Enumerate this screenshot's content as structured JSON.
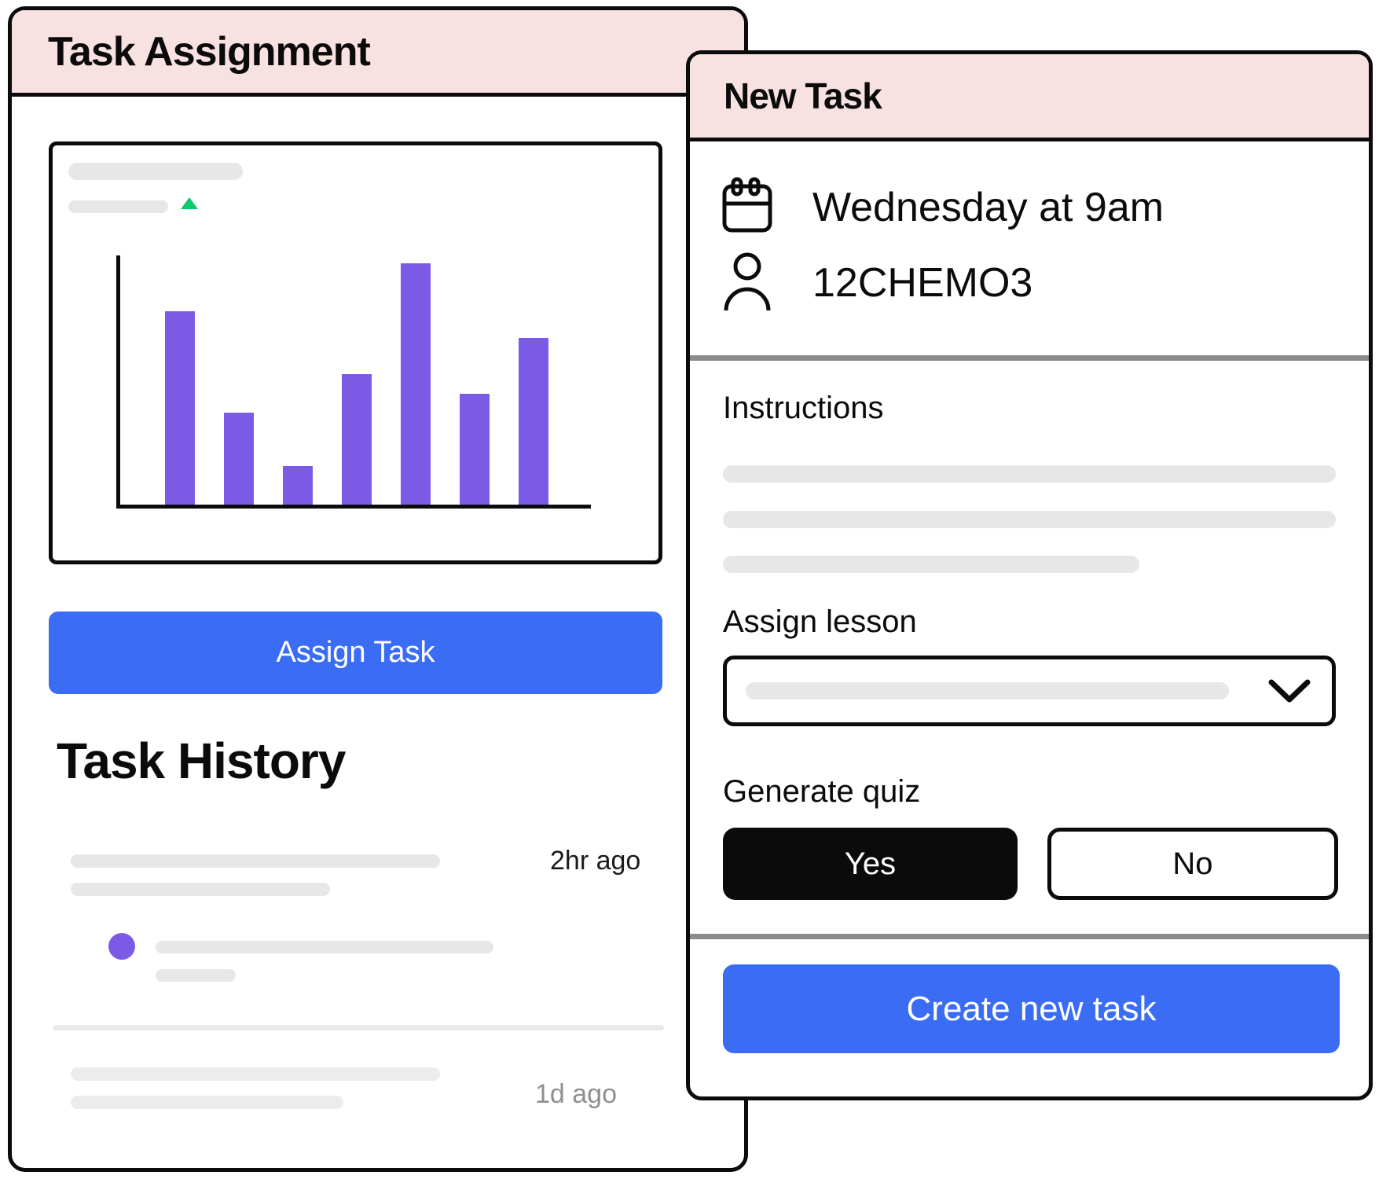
{
  "left_panel": {
    "title": "Task Assignment",
    "assign_button_label": "Assign Task",
    "history": {
      "heading": "Task History",
      "items": [
        {
          "type": "text-entry",
          "timestamp": "2hr ago"
        },
        {
          "type": "dot-entry"
        },
        {
          "type": "text-entry",
          "timestamp": "1d ago"
        }
      ]
    }
  },
  "right_panel": {
    "title": "New Task",
    "schedule": {
      "icon": "calendar-icon",
      "text": "Wednesday at 9am"
    },
    "class": {
      "icon": "person-icon",
      "text": "12CHEMO3"
    },
    "instructions_label": "Instructions",
    "assign_lesson_label": "Assign lesson",
    "lesson_dropdown": {
      "icon": "chevron-down-icon",
      "selected_value": ""
    },
    "generate_quiz_label": "Generate quiz",
    "quiz_yes_label": "Yes",
    "quiz_no_label": "No",
    "create_button_label": "Create new task"
  },
  "chart_data": {
    "type": "bar",
    "categories": [
      "",
      "",
      "",
      "",
      "",
      "",
      ""
    ],
    "values": [
      80,
      38,
      16,
      54,
      100,
      46,
      69
    ],
    "title": "",
    "xlabel": "",
    "ylabel": "",
    "ylim": [
      0,
      100
    ],
    "grid": false,
    "legend": false,
    "trend_indicator": "up",
    "bar_color": "#7b5be5"
  },
  "colors": {
    "header_pink": "#f8e1e1",
    "accent_blue": "#3b6df4",
    "accent_purple": "#7b5be5",
    "success_green": "#10c96c",
    "outline_black": "#0b0b0b",
    "divider_dark_gray": "#8c8c8c",
    "divider_light_gray": "#eaeaea",
    "placeholder_gray": "#e7e7e7",
    "muted_text_gray": "#8f8f8f"
  }
}
